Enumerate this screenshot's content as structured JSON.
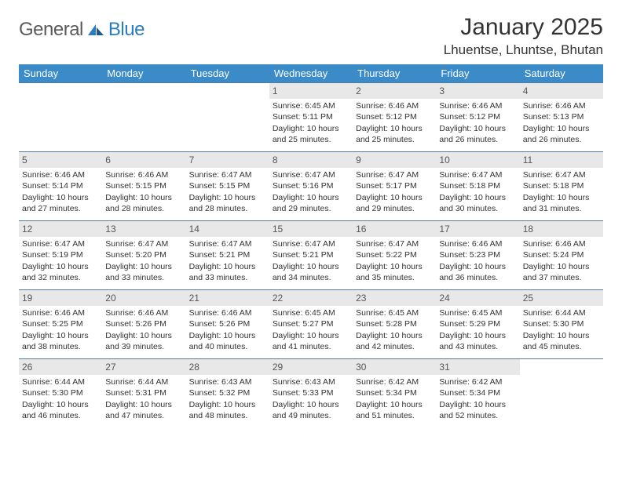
{
  "logo": {
    "text1": "General",
    "text2": "Blue"
  },
  "title": "January 2025",
  "location": "Lhuentse, Lhuntse, Bhutan",
  "colors": {
    "header_bg": "#3b8bc8",
    "header_text": "#ffffff",
    "daynum_bg": "#e8e8e8",
    "row_border": "#5a7a9a",
    "body_text": "#333333",
    "logo_gray": "#5a5a5a",
    "logo_blue": "#2b7bbf"
  },
  "weekdays": [
    "Sunday",
    "Monday",
    "Tuesday",
    "Wednesday",
    "Thursday",
    "Friday",
    "Saturday"
  ],
  "first_weekday_index": 3,
  "days": [
    {
      "n": 1,
      "sunrise": "6:45 AM",
      "sunset": "5:11 PM",
      "daylight": "10 hours and 25 minutes."
    },
    {
      "n": 2,
      "sunrise": "6:46 AM",
      "sunset": "5:12 PM",
      "daylight": "10 hours and 25 minutes."
    },
    {
      "n": 3,
      "sunrise": "6:46 AM",
      "sunset": "5:12 PM",
      "daylight": "10 hours and 26 minutes."
    },
    {
      "n": 4,
      "sunrise": "6:46 AM",
      "sunset": "5:13 PM",
      "daylight": "10 hours and 26 minutes."
    },
    {
      "n": 5,
      "sunrise": "6:46 AM",
      "sunset": "5:14 PM",
      "daylight": "10 hours and 27 minutes."
    },
    {
      "n": 6,
      "sunrise": "6:46 AM",
      "sunset": "5:15 PM",
      "daylight": "10 hours and 28 minutes."
    },
    {
      "n": 7,
      "sunrise": "6:47 AM",
      "sunset": "5:15 PM",
      "daylight": "10 hours and 28 minutes."
    },
    {
      "n": 8,
      "sunrise": "6:47 AM",
      "sunset": "5:16 PM",
      "daylight": "10 hours and 29 minutes."
    },
    {
      "n": 9,
      "sunrise": "6:47 AM",
      "sunset": "5:17 PM",
      "daylight": "10 hours and 29 minutes."
    },
    {
      "n": 10,
      "sunrise": "6:47 AM",
      "sunset": "5:18 PM",
      "daylight": "10 hours and 30 minutes."
    },
    {
      "n": 11,
      "sunrise": "6:47 AM",
      "sunset": "5:18 PM",
      "daylight": "10 hours and 31 minutes."
    },
    {
      "n": 12,
      "sunrise": "6:47 AM",
      "sunset": "5:19 PM",
      "daylight": "10 hours and 32 minutes."
    },
    {
      "n": 13,
      "sunrise": "6:47 AM",
      "sunset": "5:20 PM",
      "daylight": "10 hours and 33 minutes."
    },
    {
      "n": 14,
      "sunrise": "6:47 AM",
      "sunset": "5:21 PM",
      "daylight": "10 hours and 33 minutes."
    },
    {
      "n": 15,
      "sunrise": "6:47 AM",
      "sunset": "5:21 PM",
      "daylight": "10 hours and 34 minutes."
    },
    {
      "n": 16,
      "sunrise": "6:47 AM",
      "sunset": "5:22 PM",
      "daylight": "10 hours and 35 minutes."
    },
    {
      "n": 17,
      "sunrise": "6:46 AM",
      "sunset": "5:23 PM",
      "daylight": "10 hours and 36 minutes."
    },
    {
      "n": 18,
      "sunrise": "6:46 AM",
      "sunset": "5:24 PM",
      "daylight": "10 hours and 37 minutes."
    },
    {
      "n": 19,
      "sunrise": "6:46 AM",
      "sunset": "5:25 PM",
      "daylight": "10 hours and 38 minutes."
    },
    {
      "n": 20,
      "sunrise": "6:46 AM",
      "sunset": "5:26 PM",
      "daylight": "10 hours and 39 minutes."
    },
    {
      "n": 21,
      "sunrise": "6:46 AM",
      "sunset": "5:26 PM",
      "daylight": "10 hours and 40 minutes."
    },
    {
      "n": 22,
      "sunrise": "6:45 AM",
      "sunset": "5:27 PM",
      "daylight": "10 hours and 41 minutes."
    },
    {
      "n": 23,
      "sunrise": "6:45 AM",
      "sunset": "5:28 PM",
      "daylight": "10 hours and 42 minutes."
    },
    {
      "n": 24,
      "sunrise": "6:45 AM",
      "sunset": "5:29 PM",
      "daylight": "10 hours and 43 minutes."
    },
    {
      "n": 25,
      "sunrise": "6:44 AM",
      "sunset": "5:30 PM",
      "daylight": "10 hours and 45 minutes."
    },
    {
      "n": 26,
      "sunrise": "6:44 AM",
      "sunset": "5:30 PM",
      "daylight": "10 hours and 46 minutes."
    },
    {
      "n": 27,
      "sunrise": "6:44 AM",
      "sunset": "5:31 PM",
      "daylight": "10 hours and 47 minutes."
    },
    {
      "n": 28,
      "sunrise": "6:43 AM",
      "sunset": "5:32 PM",
      "daylight": "10 hours and 48 minutes."
    },
    {
      "n": 29,
      "sunrise": "6:43 AM",
      "sunset": "5:33 PM",
      "daylight": "10 hours and 49 minutes."
    },
    {
      "n": 30,
      "sunrise": "6:42 AM",
      "sunset": "5:34 PM",
      "daylight": "10 hours and 51 minutes."
    },
    {
      "n": 31,
      "sunrise": "6:42 AM",
      "sunset": "5:34 PM",
      "daylight": "10 hours and 52 minutes."
    }
  ],
  "labels": {
    "sunrise": "Sunrise:",
    "sunset": "Sunset:",
    "daylight": "Daylight:"
  }
}
